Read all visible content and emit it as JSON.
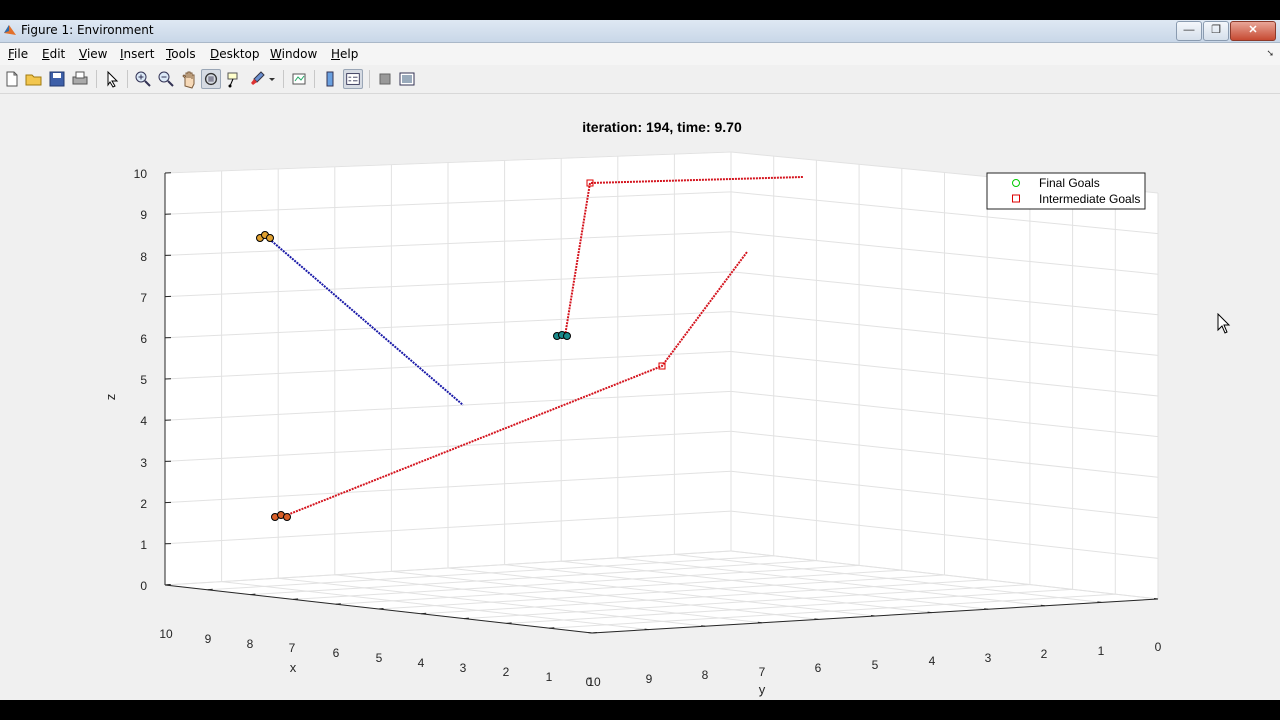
{
  "window": {
    "title": "Figure 1: Environment",
    "controls": {
      "minimize": "—",
      "restore": "❐",
      "close": "✕"
    }
  },
  "menu": {
    "items": [
      {
        "label": "File",
        "key": "F",
        "rest": "ile"
      },
      {
        "label": "Edit",
        "key": "E",
        "rest": "dit"
      },
      {
        "label": "View",
        "key": "V",
        "rest": "iew"
      },
      {
        "label": "Insert",
        "key": "I",
        "rest": "nsert"
      },
      {
        "label": "Tools",
        "key": "T",
        "rest": "ools"
      },
      {
        "label": "Desktop",
        "key": "D",
        "rest": "esktop"
      },
      {
        "label": "Window",
        "key": "W",
        "rest": "indow"
      },
      {
        "label": "Help",
        "key": "H",
        "rest": "elp"
      }
    ],
    "arrow": "➘"
  },
  "toolbar": {
    "tools": [
      "new-figure-icon",
      "open-file-icon",
      "save-icon",
      "print-icon",
      "edit-plot-arrow-icon",
      "zoom-in-icon",
      "zoom-out-icon",
      "pan-hand-icon",
      "rotate-3d-icon",
      "data-cursor-icon",
      "brush-icon",
      "link-plot-icon",
      "insert-colorbar-icon",
      "insert-legend-icon",
      "hide-plot-tools-icon",
      "show-plot-tools-icon"
    ]
  },
  "plot": {
    "title": "iteration: 194, time: 9.70",
    "xlabel": "x",
    "ylabel": "y",
    "zlabel": "z",
    "z_ticks": [
      "0",
      "1",
      "2",
      "3",
      "4",
      "5",
      "6",
      "7",
      "8",
      "9",
      "10"
    ],
    "x_ticks": [
      "10",
      "9",
      "8",
      "7",
      "6",
      "5",
      "4",
      "3",
      "2",
      "1",
      "0"
    ],
    "y_ticks": [
      "10",
      "9",
      "8",
      "7",
      "6",
      "5",
      "4",
      "3",
      "2",
      "1",
      "0"
    ],
    "legend": {
      "placement": "top-right",
      "entries": [
        {
          "label": "Final Goals",
          "color": "#00cc00",
          "marker": "circle"
        },
        {
          "label": "Intermediate Goals",
          "color": "#dd0000",
          "marker": "square"
        }
      ]
    },
    "colors": {
      "path_blue": "#1a1aa8",
      "path_red": "#d4141e",
      "grid": "#e2e2e2",
      "axes_bg": "#ffffff"
    }
  }
}
